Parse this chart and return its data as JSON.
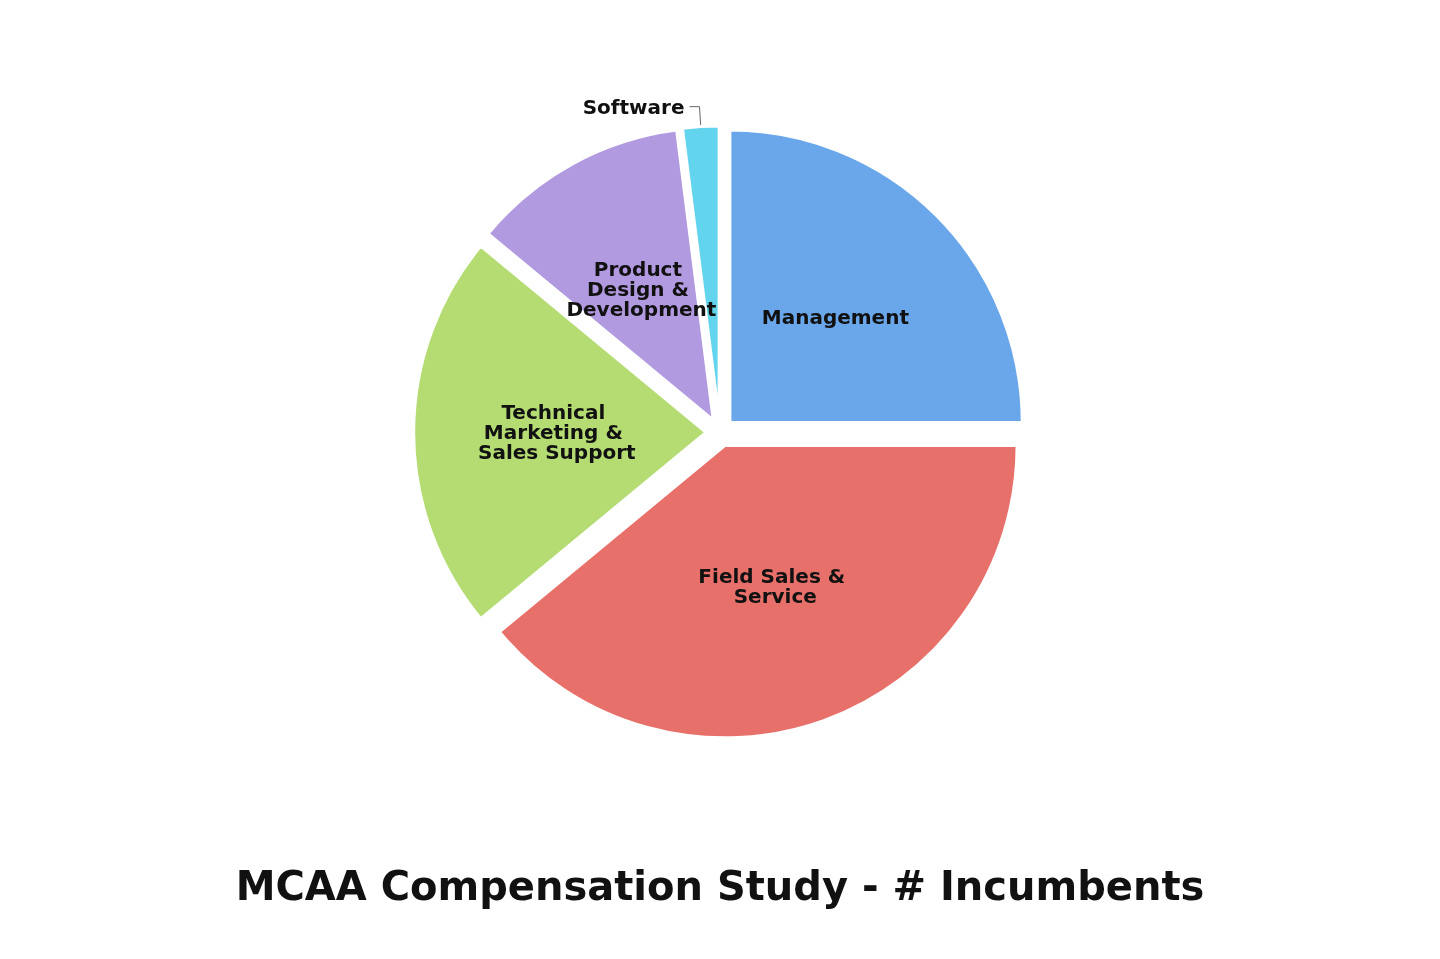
{
  "chart_data": {
    "type": "pie",
    "title": "MCAA Compensation Study - # Incumbents",
    "categories": [
      "Management",
      "Field Sales & Service",
      "Technical Marketing & Sales Support",
      "Product Design & Development",
      "Software"
    ],
    "values": [
      25,
      39,
      22,
      12,
      2
    ],
    "colors": [
      "#6aa6ea",
      "#e8706a",
      "#b4dc72",
      "#b29ae0",
      "#62d4ee"
    ],
    "legend": false
  }
}
